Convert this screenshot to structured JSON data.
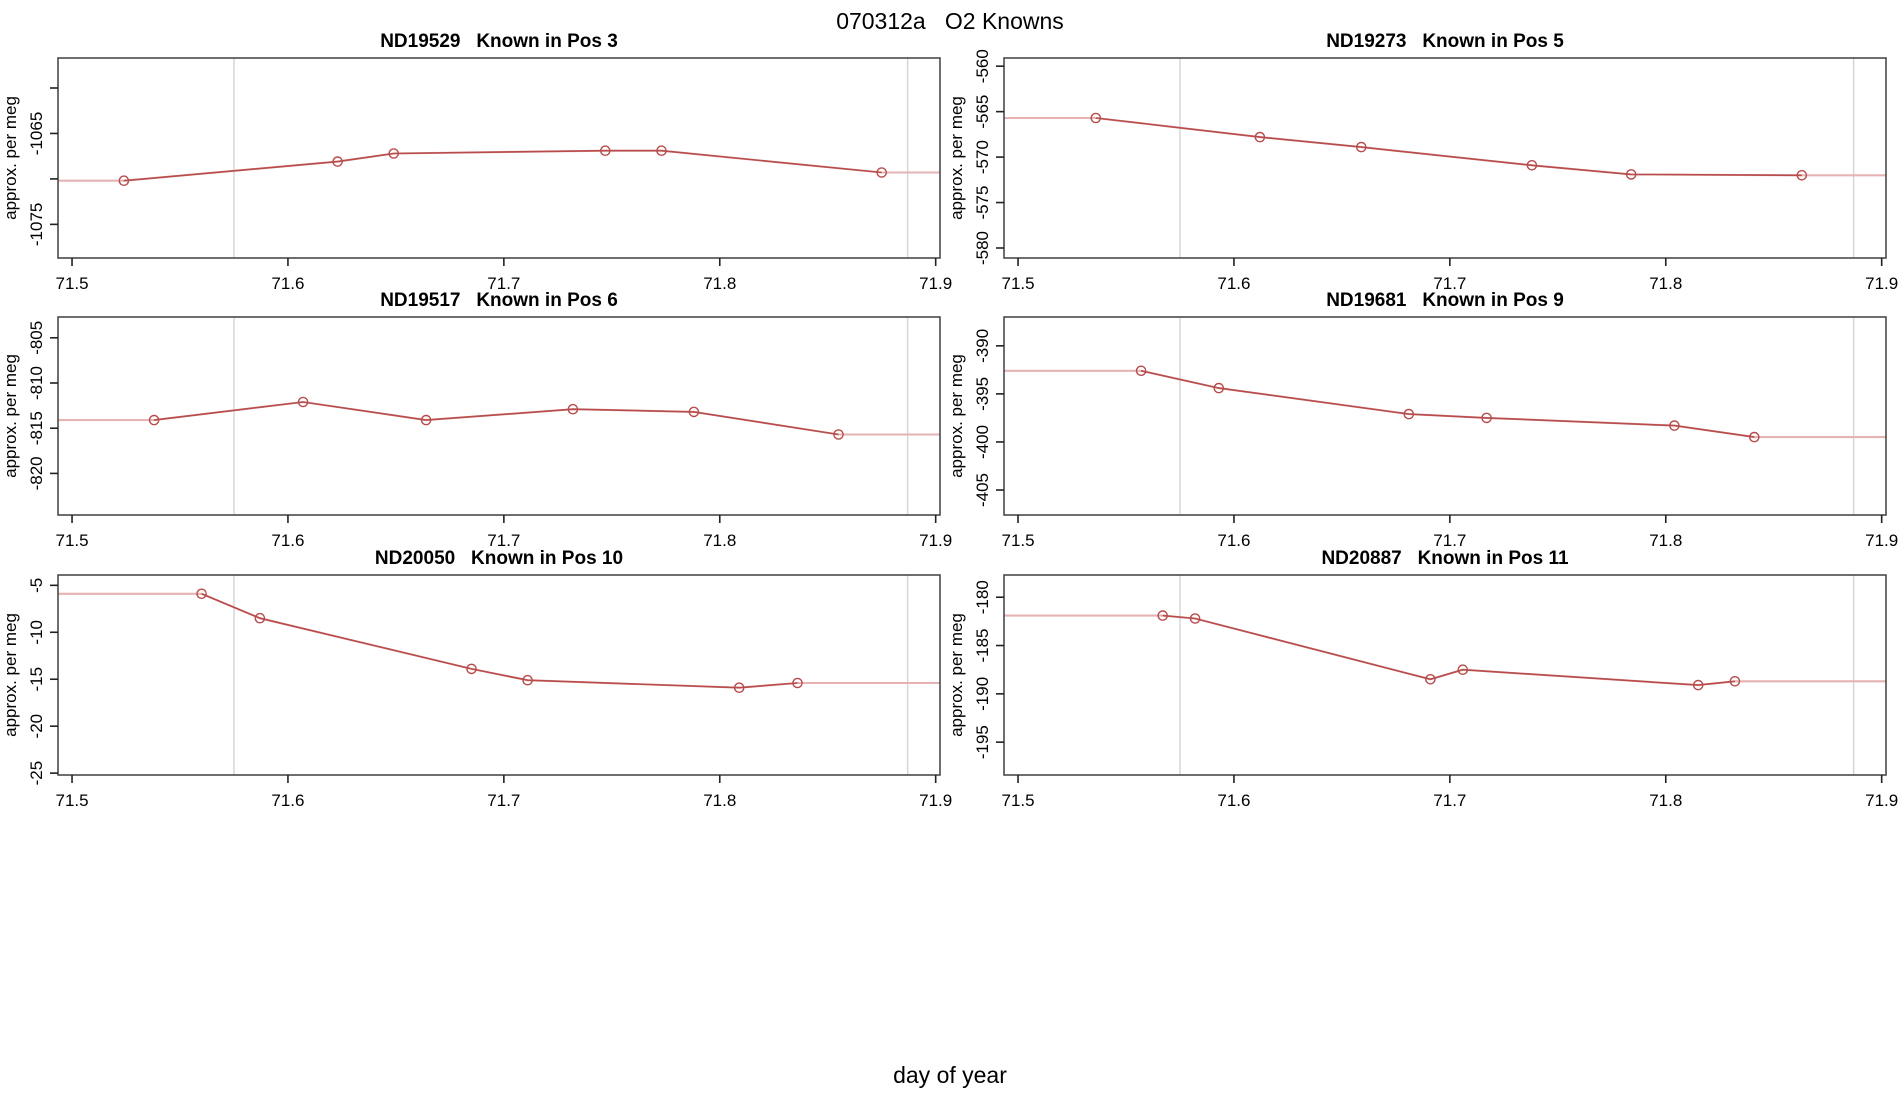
{
  "title": "070312a   O2 Knowns",
  "xlabel": "day of year",
  "colors": {
    "line": "#b84c4c",
    "line_light": "#e5b3b3",
    "marker": "#b84c4c",
    "marker_fill": "#ffffff",
    "grid": "#d6d6d6",
    "box": "#4a4a4a",
    "tick": "#222222",
    "text": "#000000",
    "background": "#ffffff"
  },
  "x_axis": {
    "xlim": [
      71.4935,
      71.902
    ],
    "ticks": [
      71.5,
      71.6,
      71.7,
      71.8,
      71.9
    ],
    "tick_labels": [
      "71.5",
      "71.6",
      "71.7",
      "71.8",
      "71.9"
    ],
    "vlines": [
      71.575,
      71.887
    ]
  },
  "chart_data": [
    {
      "type": "line",
      "id": "ND19529",
      "title": "ND19529   Known in Pos 3",
      "ylabel": "approx. per meg",
      "ylim": [
        -1078.7,
        -1056.7
      ],
      "y_ticks": [
        -1060,
        -1065,
        -1070,
        -1075
      ],
      "y_tick_labels": [
        "",
        "-1065",
        "",
        "-1075"
      ],
      "x": [
        71.524,
        71.623,
        71.649,
        71.747,
        71.773,
        71.875
      ],
      "y": [
        -1070.2,
        -1068.1,
        -1067.2,
        -1066.9,
        -1066.9,
        -1069.3
      ]
    },
    {
      "type": "line",
      "id": "ND19273",
      "title": "ND19273   Known in Pos 5",
      "ylabel": "approx. per meg",
      "ylim": [
        -581.1,
        -559.1
      ],
      "y_ticks": [
        -560,
        -565,
        -570,
        -575,
        -580
      ],
      "y_tick_labels": [
        "-560",
        "-565",
        "-570",
        "-575",
        "-580"
      ],
      "x": [
        71.536,
        71.612,
        71.659,
        71.738,
        71.784,
        71.863
      ],
      "y": [
        -565.7,
        -567.8,
        -568.9,
        -570.9,
        -571.9,
        -572.0
      ]
    },
    {
      "type": "line",
      "id": "ND19517",
      "title": "ND19517   Known in Pos 6",
      "ylabel": "approx. per meg",
      "ylim": [
        -824.6,
        -802.7
      ],
      "y_ticks": [
        -805,
        -810,
        -815,
        -820
      ],
      "y_tick_labels": [
        "-805",
        "-810",
        "-815",
        "-820"
      ],
      "x": [
        71.538,
        71.607,
        71.664,
        71.732,
        71.788,
        71.855
      ],
      "y": [
        -814.1,
        -812.1,
        -814.1,
        -812.9,
        -813.2,
        -815.7
      ]
    },
    {
      "type": "line",
      "id": "ND19681",
      "title": "ND19681   Known in Pos 9",
      "ylabel": "approx. per meg",
      "ylim": [
        -407.6,
        -387.0
      ],
      "y_ticks": [
        -390,
        -395,
        -400,
        -405
      ],
      "y_tick_labels": [
        "-390",
        "-395",
        "-400",
        "-405"
      ],
      "x": [
        71.557,
        71.593,
        71.681,
        71.717,
        71.804,
        71.841
      ],
      "y": [
        -392.6,
        -394.4,
        -397.1,
        -397.5,
        -398.3,
        -399.5
      ]
    },
    {
      "type": "line",
      "id": "ND20050",
      "title": "ND20050   Known in Pos 10",
      "ylabel": "approx. per meg",
      "ylim": [
        -25.2,
        -3.9
      ],
      "y_ticks": [
        -5,
        -10,
        -15,
        -20,
        -25
      ],
      "y_tick_labels": [
        "-5",
        "-10",
        "-15",
        "-20",
        "-25"
      ],
      "x": [
        71.56,
        71.587,
        71.685,
        71.711,
        71.809,
        71.836
      ],
      "y": [
        -5.9,
        -8.5,
        -13.9,
        -15.1,
        -15.9,
        -15.4
      ]
    },
    {
      "type": "line",
      "id": "ND20887",
      "title": "ND20887   Known in Pos 11",
      "ylabel": "approx. per meg",
      "ylim": [
        -198.4,
        -177.7
      ],
      "y_ticks": [
        -180,
        -185,
        -190,
        -195
      ],
      "y_tick_labels": [
        "-180",
        "-185",
        "-190",
        "-195"
      ],
      "x": [
        71.567,
        71.582,
        71.691,
        71.706,
        71.815,
        71.832
      ],
      "y": [
        -181.9,
        -182.2,
        -188.5,
        -187.5,
        -189.1,
        -188.7
      ]
    }
  ]
}
